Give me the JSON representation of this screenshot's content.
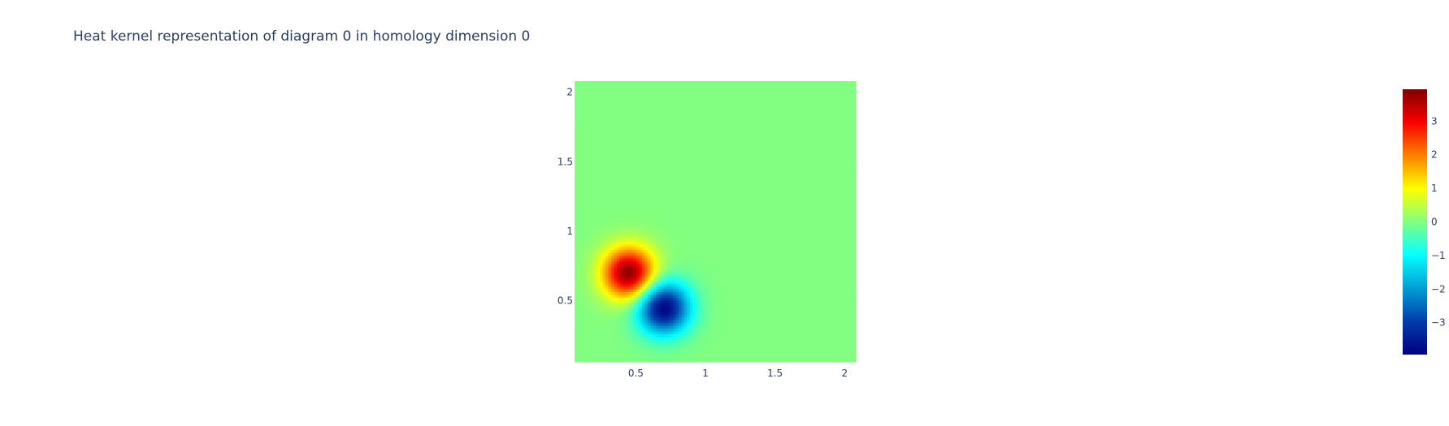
{
  "chart_data": {
    "type": "heatmap",
    "title": "Heat kernel representation of diagram 0 in homology dimension 0",
    "xlabel": "",
    "ylabel": "",
    "xlim": [
      0.06,
      2.08
    ],
    "ylim": [
      0.06,
      2.08
    ],
    "x_ticks": [
      {
        "value": 0.5,
        "label": "0.5"
      },
      {
        "value": 1,
        "label": "1"
      },
      {
        "value": 1.5,
        "label": "1.5"
      },
      {
        "value": 2,
        "label": "2"
      }
    ],
    "y_ticks": [
      {
        "value": 0.5,
        "label": "0.5"
      },
      {
        "value": 1,
        "label": "1"
      },
      {
        "value": 1.5,
        "label": "1.5"
      },
      {
        "value": 2,
        "label": "2"
      }
    ],
    "grid": false,
    "colorscale": "Jet",
    "zlim": [
      -3.95,
      3.95
    ],
    "colorbar_ticks": [
      {
        "value": 3,
        "label": "3"
      },
      {
        "value": 2,
        "label": "2"
      },
      {
        "value": 1,
        "label": "1"
      },
      {
        "value": 0,
        "label": "0"
      },
      {
        "value": -1,
        "label": "−1"
      },
      {
        "value": -2,
        "label": "−2"
      },
      {
        "value": -3,
        "label": "−3"
      }
    ],
    "kernel": {
      "description_of_field": "difference of two gaussians",
      "peaks": [
        {
          "x": 0.45,
          "y": 0.7,
          "value": 3.9
        },
        {
          "x": 0.7,
          "y": 0.45,
          "value": -3.9
        }
      ],
      "sigma": 0.13,
      "grid_size": 100
    }
  }
}
